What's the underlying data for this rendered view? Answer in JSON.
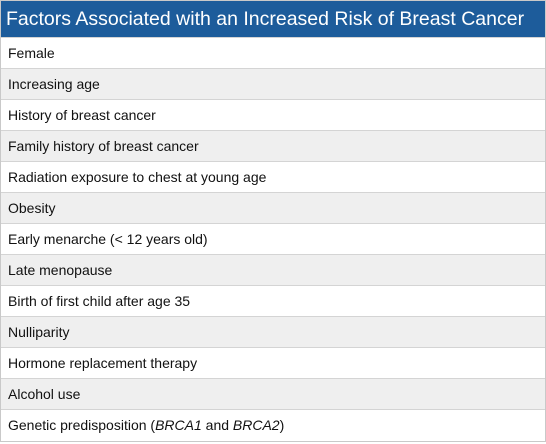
{
  "table": {
    "title": "Factors Associated with an Increased Risk of Breast Cancer",
    "rows": [
      "Female",
      "Increasing age",
      "History of breast cancer",
      "Family history of breast cancer",
      "Radiation exposure to chest at young age",
      "Obesity",
      "Early menarche (< 12 years old)",
      "Late menopause",
      "Birth of first child after age 35",
      "Nulliparity",
      "Hormone replacement therapy",
      "Alcohol use"
    ],
    "last_row": {
      "prefix": "Genetic predisposition (",
      "gene1": "BRCA1",
      "middle": " and ",
      "gene2": "BRCA2",
      "suffix": ")"
    }
  }
}
